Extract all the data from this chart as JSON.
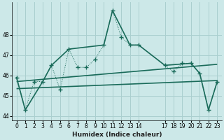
{
  "xlabel": "Humidex (Indice chaleur)",
  "bg_color": "#cce8e8",
  "grid_color": "#aacfcf",
  "line_color": "#1a6b5a",
  "xlim": [
    -0.5,
    23.5
  ],
  "ylim": [
    43.8,
    49.6
  ],
  "yticks": [
    44,
    45,
    46,
    47,
    48
  ],
  "xticks": [
    0,
    1,
    2,
    3,
    4,
    5,
    6,
    7,
    8,
    9,
    10,
    11,
    12,
    13,
    14,
    17,
    18,
    19,
    20,
    21,
    22,
    23
  ],
  "dotted_x": [
    0,
    1,
    2,
    3,
    4,
    5,
    6,
    7,
    8,
    9,
    10,
    11,
    12,
    13,
    14,
    17,
    18,
    19,
    20,
    21,
    22,
    23
  ],
  "dotted_y": [
    45.9,
    44.3,
    45.7,
    45.7,
    46.5,
    45.3,
    47.3,
    46.4,
    46.4,
    46.8,
    47.5,
    49.2,
    47.9,
    47.5,
    47.5,
    46.5,
    46.2,
    46.6,
    46.6,
    46.1,
    44.3,
    45.7
  ],
  "solid_x": [
    0,
    1,
    3,
    4,
    6,
    10,
    11,
    13,
    14,
    17,
    20,
    21,
    22,
    23
  ],
  "solid_y": [
    45.9,
    44.3,
    45.7,
    46.5,
    47.3,
    47.5,
    49.2,
    47.5,
    47.5,
    46.5,
    46.6,
    46.1,
    44.3,
    45.7
  ],
  "trend1_x": [
    0,
    23
  ],
  "trend1_y": [
    45.7,
    46.55
  ],
  "trend2_x": [
    0,
    23
  ],
  "trend2_y": [
    45.35,
    45.75
  ]
}
